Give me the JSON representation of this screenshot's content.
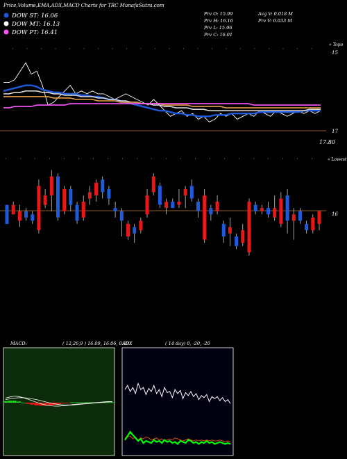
{
  "header": {
    "title": "Price,Volume,EMA,ADX,MACD Charts for TRC MunafaSutra.com",
    "legend": [
      {
        "label": "DOW ST: 16.06",
        "color": "#1e5adc"
      },
      {
        "label": "DOW MT: 16.13",
        "color": "#ffffff"
      },
      {
        "label": "DOW PT: 16.41",
        "color": "#ff55ff"
      }
    ],
    "ohlc": {
      "prv_o": "Prv  O: 15.99",
      "prv_h": "Prv  H: 16.16",
      "prv_l": "Prv  L: 15.96",
      "prv_c": "Prv  C: 16.01",
      "avg_v": "Avg V: 0.018 M",
      "prv_v": "Prv  V: 0.033 M"
    }
  },
  "price_panel": {
    "top_tick": "15",
    "mid_tick": "17",
    "low_label": "17.80",
    "corner_label": "« Topo"
  },
  "candle_panel": {
    "right_tick": "16",
    "corner_label": "« Lowest"
  },
  "macd_panel": {
    "label": "MACD:",
    "values": "( 12,26,9 ) 16.09,  16.06,  0.03"
  },
  "adx_panel": {
    "label": "ADX",
    "values": "( 14  day) 0,  -20,  -20"
  },
  "chart_data": [
    {
      "type": "line",
      "name": "price-ema-panel",
      "y_scale": "inverted",
      "ylim": [
        18.5,
        14.8
      ],
      "series": [
        {
          "name": "price",
          "color": "#ffffff",
          "values": [
            16.0,
            16.0,
            15.9,
            15.6,
            15.3,
            15.7,
            15.6,
            16.1,
            16.8,
            16.7,
            16.5,
            16.3,
            16.1,
            16.4,
            16.3,
            16.4,
            16.3,
            16.4,
            16.4,
            16.5,
            16.6,
            16.5,
            16.4,
            16.5,
            16.6,
            16.7,
            16.8,
            16.6,
            16.8,
            17.0,
            17.2,
            17.1,
            17.0,
            17.2,
            17.1,
            17.3,
            17.2,
            17.4,
            17.3,
            17.1,
            17.2,
            17.1,
            17.3,
            17.2,
            17.1,
            17.2,
            17.0,
            17.1,
            17.2,
            17.0,
            17.1,
            17.2,
            17.1,
            17.0,
            17.1,
            17.0,
            17.1,
            17.0
          ]
        },
        {
          "name": "DOW ST",
          "color": "#1e5adc",
          "values": [
            16.3,
            16.25,
            16.2,
            16.15,
            16.1,
            16.1,
            16.15,
            16.25,
            16.3,
            16.35,
            16.35,
            16.4,
            16.4,
            16.4,
            16.45,
            16.45,
            16.5,
            16.5,
            16.55,
            16.6,
            16.6,
            16.65,
            16.7,
            16.75,
            16.8,
            16.85,
            16.9,
            16.95,
            17.0,
            17.0,
            17.05,
            17.1,
            17.1,
            17.15,
            17.15,
            17.2,
            17.2,
            17.2,
            17.15,
            17.15,
            17.15,
            17.1,
            17.1,
            17.1,
            17.1,
            17.1,
            17.05,
            17.05,
            17.05,
            17.05,
            17.05,
            17.05,
            17.05,
            17.05,
            17.0,
            17.0,
            17.0,
            17.0
          ]
        },
        {
          "name": "DOW MT",
          "color": "#d8d8d8",
          "values": [
            16.4,
            16.4,
            16.35,
            16.35,
            16.3,
            16.3,
            16.3,
            16.35,
            16.35,
            16.4,
            16.4,
            16.45,
            16.45,
            16.45,
            16.5,
            16.5,
            16.5,
            16.55,
            16.55,
            16.6,
            16.6,
            16.65,
            16.65,
            16.7,
            16.7,
            16.75,
            16.75,
            16.8,
            16.8,
            16.85,
            16.85,
            16.9,
            16.9,
            16.9,
            16.95,
            16.95,
            16.95,
            17.0,
            17.0,
            17.0,
            17.0,
            17.0,
            17.0,
            17.0,
            17.0,
            17.0,
            17.0,
            17.0,
            17.0,
            17.0,
            17.0,
            17.0,
            17.0,
            17.0,
            17.0,
            16.95,
            16.95,
            16.95
          ]
        },
        {
          "name": "EMA orange",
          "color": "#e8a040",
          "values": [
            16.5,
            16.5,
            16.5,
            16.5,
            16.5,
            16.5,
            16.5,
            16.5,
            16.5,
            16.55,
            16.55,
            16.55,
            16.55,
            16.6,
            16.6,
            16.6,
            16.6,
            16.65,
            16.65,
            16.65,
            16.65,
            16.7,
            16.7,
            16.7,
            16.7,
            16.75,
            16.75,
            16.75,
            16.75,
            16.8,
            16.8,
            16.8,
            16.8,
            16.8,
            16.85,
            16.85,
            16.85,
            16.85,
            16.85,
            16.85,
            16.9,
            16.9,
            16.9,
            16.9,
            16.9,
            16.9,
            16.9,
            16.9,
            16.9,
            16.9,
            16.9,
            16.9,
            16.9,
            16.9,
            16.9,
            16.9,
            16.9,
            16.9
          ]
        },
        {
          "name": "DOW PT",
          "color": "#ff55ff",
          "values": [
            16.9,
            16.9,
            16.85,
            16.85,
            16.85,
            16.85,
            16.8,
            16.8,
            16.8,
            16.8,
            16.8,
            16.8,
            16.75,
            16.75,
            16.75,
            16.75,
            16.75,
            16.75,
            16.75,
            16.75,
            16.75,
            16.75,
            16.75,
            16.75,
            16.75,
            16.75,
            16.75,
            16.75,
            16.75,
            16.75,
            16.75,
            16.75,
            16.75,
            16.75,
            16.75,
            16.75,
            16.75,
            16.75,
            16.75,
            16.75,
            16.75,
            16.75,
            16.75,
            16.75,
            16.75,
            16.8,
            16.8,
            16.8,
            16.8,
            16.8,
            16.8,
            16.8,
            16.8,
            16.8,
            16.8,
            16.8,
            16.8,
            16.8
          ]
        }
      ],
      "reference_level": 17.0
    },
    {
      "type": "candlestick",
      "name": "volume-candles",
      "candles": [
        {
          "o": 15.8,
          "c": 16.4,
          "h": 16.4,
          "l": 15.8,
          "up": true
        },
        {
          "o": 16.1,
          "c": 15.8,
          "h": 16.1,
          "l": 15.7,
          "up": false
        },
        {
          "o": 16.3,
          "c": 16.0,
          "h": 16.5,
          "l": 15.8,
          "up": false
        },
        {
          "o": 16.0,
          "c": 16.2,
          "h": 16.3,
          "l": 15.9,
          "up": true
        },
        {
          "o": 16.1,
          "c": 16.3,
          "h": 16.4,
          "l": 16.0,
          "up": true
        },
        {
          "o": 16.6,
          "c": 15.2,
          "h": 16.7,
          "l": 15.0,
          "up": false
        },
        {
          "o": 15.8,
          "c": 15.5,
          "h": 15.9,
          "l": 15.3,
          "up": false
        },
        {
          "o": 15.5,
          "c": 14.9,
          "h": 16.0,
          "l": 14.7,
          "up": false
        },
        {
          "o": 14.9,
          "c": 16.2,
          "h": 16.3,
          "l": 14.8,
          "up": true
        },
        {
          "o": 16.0,
          "c": 15.3,
          "h": 16.1,
          "l": 15.2,
          "up": false
        },
        {
          "o": 15.3,
          "c": 15.8,
          "h": 16.0,
          "l": 15.2,
          "up": true
        },
        {
          "o": 15.8,
          "c": 16.3,
          "h": 16.4,
          "l": 15.7,
          "up": true
        },
        {
          "o": 16.2,
          "c": 15.7,
          "h": 16.3,
          "l": 15.5,
          "up": false
        },
        {
          "o": 15.6,
          "c": 15.4,
          "h": 15.8,
          "l": 15.2,
          "up": false
        },
        {
          "o": 15.5,
          "c": 15.1,
          "h": 15.7,
          "l": 15.0,
          "up": false
        },
        {
          "o": 15.0,
          "c": 15.4,
          "h": 15.6,
          "l": 14.9,
          "up": true
        },
        {
          "o": 15.3,
          "c": 15.6,
          "h": 15.8,
          "l": 15.2,
          "up": true
        },
        {
          "o": 15.9,
          "c": 16.0,
          "h": 16.2,
          "l": 15.7,
          "up": true
        },
        {
          "o": 16.0,
          "c": 16.3,
          "h": 16.8,
          "l": 15.9,
          "up": true
        },
        {
          "o": 16.8,
          "c": 16.4,
          "h": 16.9,
          "l": 16.3,
          "up": false
        },
        {
          "o": 16.5,
          "c": 16.7,
          "h": 17.0,
          "l": 16.4,
          "up": true
        },
        {
          "o": 16.6,
          "c": 16.3,
          "h": 16.7,
          "l": 16.2,
          "up": false
        },
        {
          "o": 16.1,
          "c": 15.5,
          "h": 16.2,
          "l": 15.3,
          "up": false
        },
        {
          "o": 15.4,
          "c": 14.9,
          "h": 15.5,
          "l": 14.8,
          "up": false
        },
        {
          "o": 15.2,
          "c": 15.8,
          "h": 15.9,
          "l": 15.1,
          "up": true
        },
        {
          "o": 15.9,
          "c": 15.7,
          "h": 16.1,
          "l": 15.6,
          "up": false
        },
        {
          "o": 15.7,
          "c": 15.9,
          "h": 15.9,
          "l": 15.6,
          "up": true
        },
        {
          "o": 15.8,
          "c": 15.7,
          "h": 15.9,
          "l": 15.3,
          "up": false
        },
        {
          "o": 15.5,
          "c": 15.3,
          "h": 15.9,
          "l": 15.2,
          "up": false
        },
        {
          "o": 15.2,
          "c": 15.6,
          "h": 15.7,
          "l": 15.0,
          "up": true
        },
        {
          "o": 15.7,
          "c": 16.0,
          "h": 16.2,
          "l": 15.6,
          "up": true
        },
        {
          "o": 16.9,
          "c": 15.5,
          "h": 17.0,
          "l": 15.3,
          "up": false
        },
        {
          "o": 15.9,
          "c": 16.1,
          "h": 16.3,
          "l": 15.8,
          "up": true
        },
        {
          "o": 16.0,
          "c": 15.7,
          "h": 16.1,
          "l": 15.5,
          "up": false
        },
        {
          "o": 16.4,
          "c": 16.8,
          "h": 17.0,
          "l": 16.3,
          "up": true
        },
        {
          "o": 16.7,
          "c": 16.5,
          "h": 17.1,
          "l": 16.2,
          "up": false
        },
        {
          "o": 16.8,
          "c": 17.1,
          "h": 17.2,
          "l": 16.7,
          "up": true
        },
        {
          "o": 17.0,
          "c": 16.6,
          "h": 17.1,
          "l": 16.4,
          "up": false
        },
        {
          "o": 17.3,
          "c": 15.7,
          "h": 17.4,
          "l": 15.6,
          "up": false
        },
        {
          "o": 15.8,
          "c": 16.0,
          "h": 16.1,
          "l": 15.7,
          "up": true
        },
        {
          "o": 16.0,
          "c": 15.9,
          "h": 16.1,
          "l": 15.8,
          "up": false
        },
        {
          "o": 15.9,
          "c": 16.1,
          "h": 16.2,
          "l": 15.7,
          "up": true
        },
        {
          "o": 16.2,
          "c": 15.9,
          "h": 16.3,
          "l": 15.5,
          "up": false
        },
        {
          "o": 16.4,
          "c": 15.6,
          "h": 16.5,
          "l": 15.4,
          "up": false
        },
        {
          "o": 15.5,
          "c": 16.3,
          "h": 16.7,
          "l": 15.3,
          "up": true
        },
        {
          "o": 16.3,
          "c": 16.1,
          "h": 16.9,
          "l": 15.9,
          "up": false
        },
        {
          "o": 16.0,
          "c": 16.3,
          "h": 16.4,
          "l": 15.9,
          "up": true
        },
        {
          "o": 16.4,
          "c": 16.6,
          "h": 16.7,
          "l": 16.3,
          "up": true
        },
        {
          "o": 16.6,
          "c": 16.2,
          "h": 16.7,
          "l": 16.1,
          "up": false
        },
        {
          "o": 16.4,
          "c": 16.0,
          "h": 16.6,
          "l": 16.0,
          "up": false
        }
      ],
      "reference_level": 16.0
    },
    {
      "type": "line",
      "name": "macd",
      "series": [
        {
          "name": "macd",
          "color": "#ffffff",
          "values": [
            0.12,
            0.15,
            0.17,
            0.16,
            0.13,
            0.09,
            0.05,
            0.01,
            -0.03,
            -0.06,
            -0.08,
            -0.09,
            -0.09,
            -0.08,
            -0.07,
            -0.05,
            -0.04,
            -0.03,
            -0.02,
            -0.01,
            0.0,
            0.01,
            0.02,
            0.03,
            0.03
          ]
        },
        {
          "name": "signal",
          "color": "#ffffff",
          "values": [
            0.08,
            0.1,
            0.12,
            0.13,
            0.13,
            0.12,
            0.1,
            0.08,
            0.05,
            0.02,
            -0.01,
            -0.03,
            -0.05,
            -0.06,
            -0.06,
            -0.06,
            -0.05,
            -0.04,
            -0.03,
            -0.02,
            -0.01,
            0.0,
            0.01,
            0.02,
            0.02
          ]
        }
      ],
      "histogram": [
        0.04,
        0.05,
        0.05,
        0.03,
        0.0,
        -0.03,
        -0.05,
        -0.07,
        -0.08,
        -0.08,
        -0.07,
        -0.06,
        -0.04,
        -0.02,
        -0.01,
        0.01,
        0.01,
        0.01,
        0.01,
        0.01,
        0.01,
        0.01,
        0.01,
        0.01,
        0.01
      ]
    },
    {
      "type": "line",
      "name": "adx",
      "series": [
        {
          "name": "adx",
          "color": "#ffffff",
          "values": [
            62,
            66,
            60,
            64,
            58,
            68,
            62,
            64,
            57,
            63,
            60,
            66,
            58,
            62,
            55,
            64,
            59,
            60,
            54,
            62,
            58,
            61,
            53,
            59,
            56,
            60,
            55,
            58,
            52,
            56,
            54,
            57,
            50,
            55,
            53,
            55,
            51,
            54,
            50,
            52,
            48
          ]
        },
        {
          "name": "+di",
          "color": "#e04a10",
          "values": [
            14,
            15,
            16,
            13,
            15,
            12,
            14,
            13,
            15,
            14,
            12,
            13,
            14,
            12,
            13,
            11,
            12,
            13,
            12,
            14,
            13,
            12,
            11,
            12,
            13,
            12,
            11,
            12,
            11,
            12,
            11,
            12,
            11,
            12,
            11,
            11,
            12,
            11,
            10,
            11,
            10
          ]
        },
        {
          "name": "-di",
          "color": "#00ff00",
          "values": [
            12,
            16,
            20,
            17,
            14,
            11,
            13,
            9,
            11,
            10,
            9,
            12,
            10,
            11,
            9,
            12,
            10,
            11,
            9,
            10,
            8,
            11,
            10,
            9,
            12,
            11,
            9,
            10,
            8,
            10,
            9,
            11,
            9,
            10,
            8,
            9,
            10,
            9,
            8,
            9,
            8
          ]
        }
      ]
    }
  ]
}
